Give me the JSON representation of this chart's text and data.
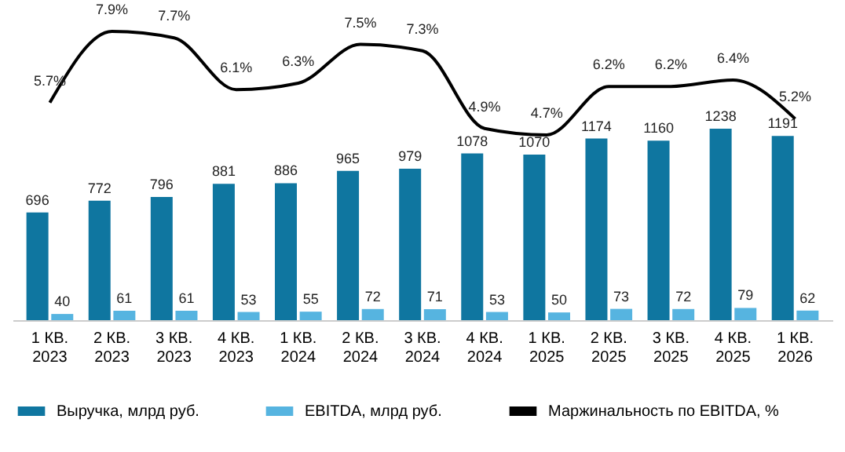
{
  "chart_data": {
    "type": "bar",
    "categories": [
      "1 КВ.\n2023",
      "2 КВ.\n2023",
      "3 КВ.\n2023",
      "4 КВ.\n2023",
      "1 КВ.\n2024",
      "2 КВ.\n2024",
      "3 КВ.\n2024",
      "4 КВ.\n2024",
      "1 КВ.\n2025",
      "2 КВ.\n2025",
      "3 КВ.\n2025",
      "4 КВ.\n2025",
      "1 КВ.\n2026"
    ],
    "series": [
      {
        "name": "Выручка, млрд руб.",
        "color": "#0f76a0",
        "values": [
          696,
          772,
          796,
          881,
          886,
          965,
          979,
          1078,
          1070,
          1174,
          1160,
          1238,
          1191
        ]
      },
      {
        "name": "EBITDA, млрд руб.",
        "color": "#56b4e0",
        "values": [
          40,
          61,
          61,
          53,
          55,
          72,
          71,
          53,
          50,
          73,
          72,
          79,
          62
        ]
      },
      {
        "name": "Маржинальность по EBITDA, %",
        "color": "#000000",
        "type": "line",
        "axis": "y2",
        "values": [
          5.7,
          7.9,
          7.7,
          6.1,
          6.3,
          7.5,
          7.3,
          4.9,
          4.7,
          6.2,
          6.2,
          6.4,
          5.2
        ],
        "value_labels": [
          "5.7%",
          "7.9%",
          "7.7%",
          "6.1%",
          "6.3%",
          "7.5%",
          "7.3%",
          "4.9%",
          "4.7%",
          "6.2%",
          "6.2%",
          "6.4%",
          "5.2%"
        ]
      }
    ],
    "data_labels": true,
    "tick_labels": "x",
    "grid": false,
    "legend": "bottom",
    "marker": "none",
    "line_style": "solid"
  }
}
